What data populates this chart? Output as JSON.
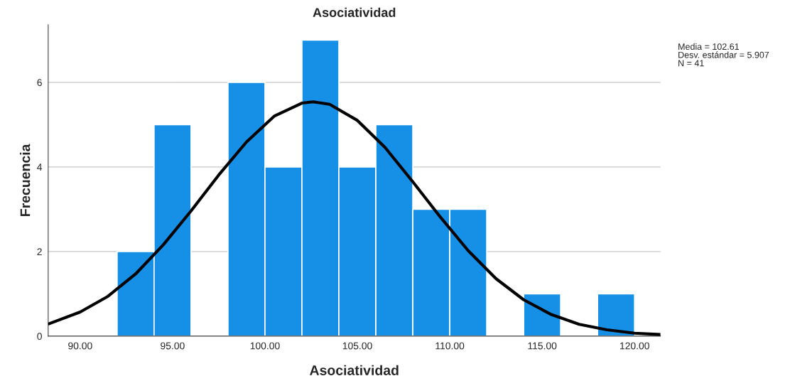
{
  "chart_data": {
    "type": "histogram",
    "title": "Asociatividad",
    "xlabel": "Asociatividad",
    "ylabel": "Frecuencia",
    "bins": [
      92,
      94,
      96,
      98,
      100,
      102,
      104,
      106,
      108,
      110,
      112,
      114,
      116,
      118,
      120
    ],
    "values": [
      2,
      5,
      0,
      6,
      4,
      7,
      4,
      5,
      3,
      3,
      0,
      1,
      0,
      1
    ],
    "color": "#1590e6",
    "series": [
      {
        "type": "line",
        "color": "#000000",
        "x": [
          88.3,
          90,
          91.5,
          93,
          94.5,
          96,
          97.5,
          99,
          100.5,
          102,
          102.61,
          103.5,
          105,
          106.5,
          108,
          109.5,
          111,
          112.5,
          114,
          115.5,
          117,
          118.5,
          120,
          121.4
        ],
        "values": [
          0.29,
          0.57,
          0.94,
          1.47,
          2.16,
          2.96,
          3.81,
          4.59,
          5.2,
          5.51,
          5.54,
          5.48,
          5.1,
          4.46,
          3.65,
          2.81,
          2.02,
          1.36,
          0.86,
          0.51,
          0.28,
          0.15,
          0.07,
          0.04
        ]
      }
    ],
    "xlim": [
      88.27,
      121.4
    ],
    "ylim": [
      0,
      7.36
    ],
    "xticks": [
      {
        "value": 90,
        "label": "90.00"
      },
      {
        "value": 95,
        "label": "95.00"
      },
      {
        "value": 100,
        "label": "100.00"
      },
      {
        "value": 105,
        "label": "105.00"
      },
      {
        "value": 110,
        "label": "110.00"
      },
      {
        "value": 115,
        "label": "115.00"
      },
      {
        "value": 120,
        "label": "120.00"
      }
    ],
    "yticks": [
      0,
      2,
      4,
      6
    ],
    "grid": "y",
    "annotations": [
      "Media = 102.61",
      "Desv. estándar = 5.907",
      "N = 41"
    ]
  }
}
